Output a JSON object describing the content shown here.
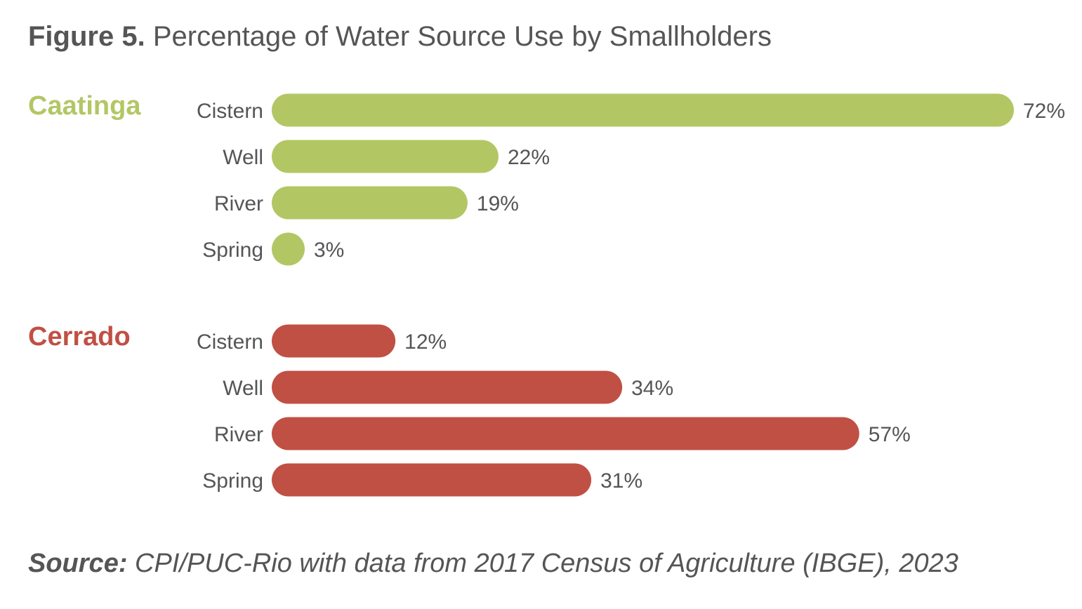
{
  "title": {
    "figure_label": "Figure 5.",
    "text": "Percentage of Water Source Use by Smallholders"
  },
  "source": {
    "label": "Source:",
    "text": "CPI/PUC-Rio with data from 2017 Census of Agriculture (IBGE), 2023"
  },
  "chart_data": {
    "type": "bar",
    "orientation": "horizontal",
    "value_suffix": "%",
    "xlim": [
      0,
      72
    ],
    "grid": false,
    "groups": [
      {
        "name": "Caatinga",
        "color": "#b2c764",
        "categories": [
          "Cistern",
          "Well",
          "River",
          "Spring"
        ],
        "values": [
          72,
          22,
          19,
          3
        ],
        "value_labels": [
          "72%",
          "22%",
          "19%",
          "3%"
        ]
      },
      {
        "name": "Cerrado",
        "color": "#c05044",
        "categories": [
          "Cistern",
          "Well",
          "River",
          "Spring"
        ],
        "values": [
          12,
          34,
          57,
          31
        ],
        "value_labels": [
          "12%",
          "34%",
          "57%",
          "31%"
        ]
      }
    ]
  }
}
